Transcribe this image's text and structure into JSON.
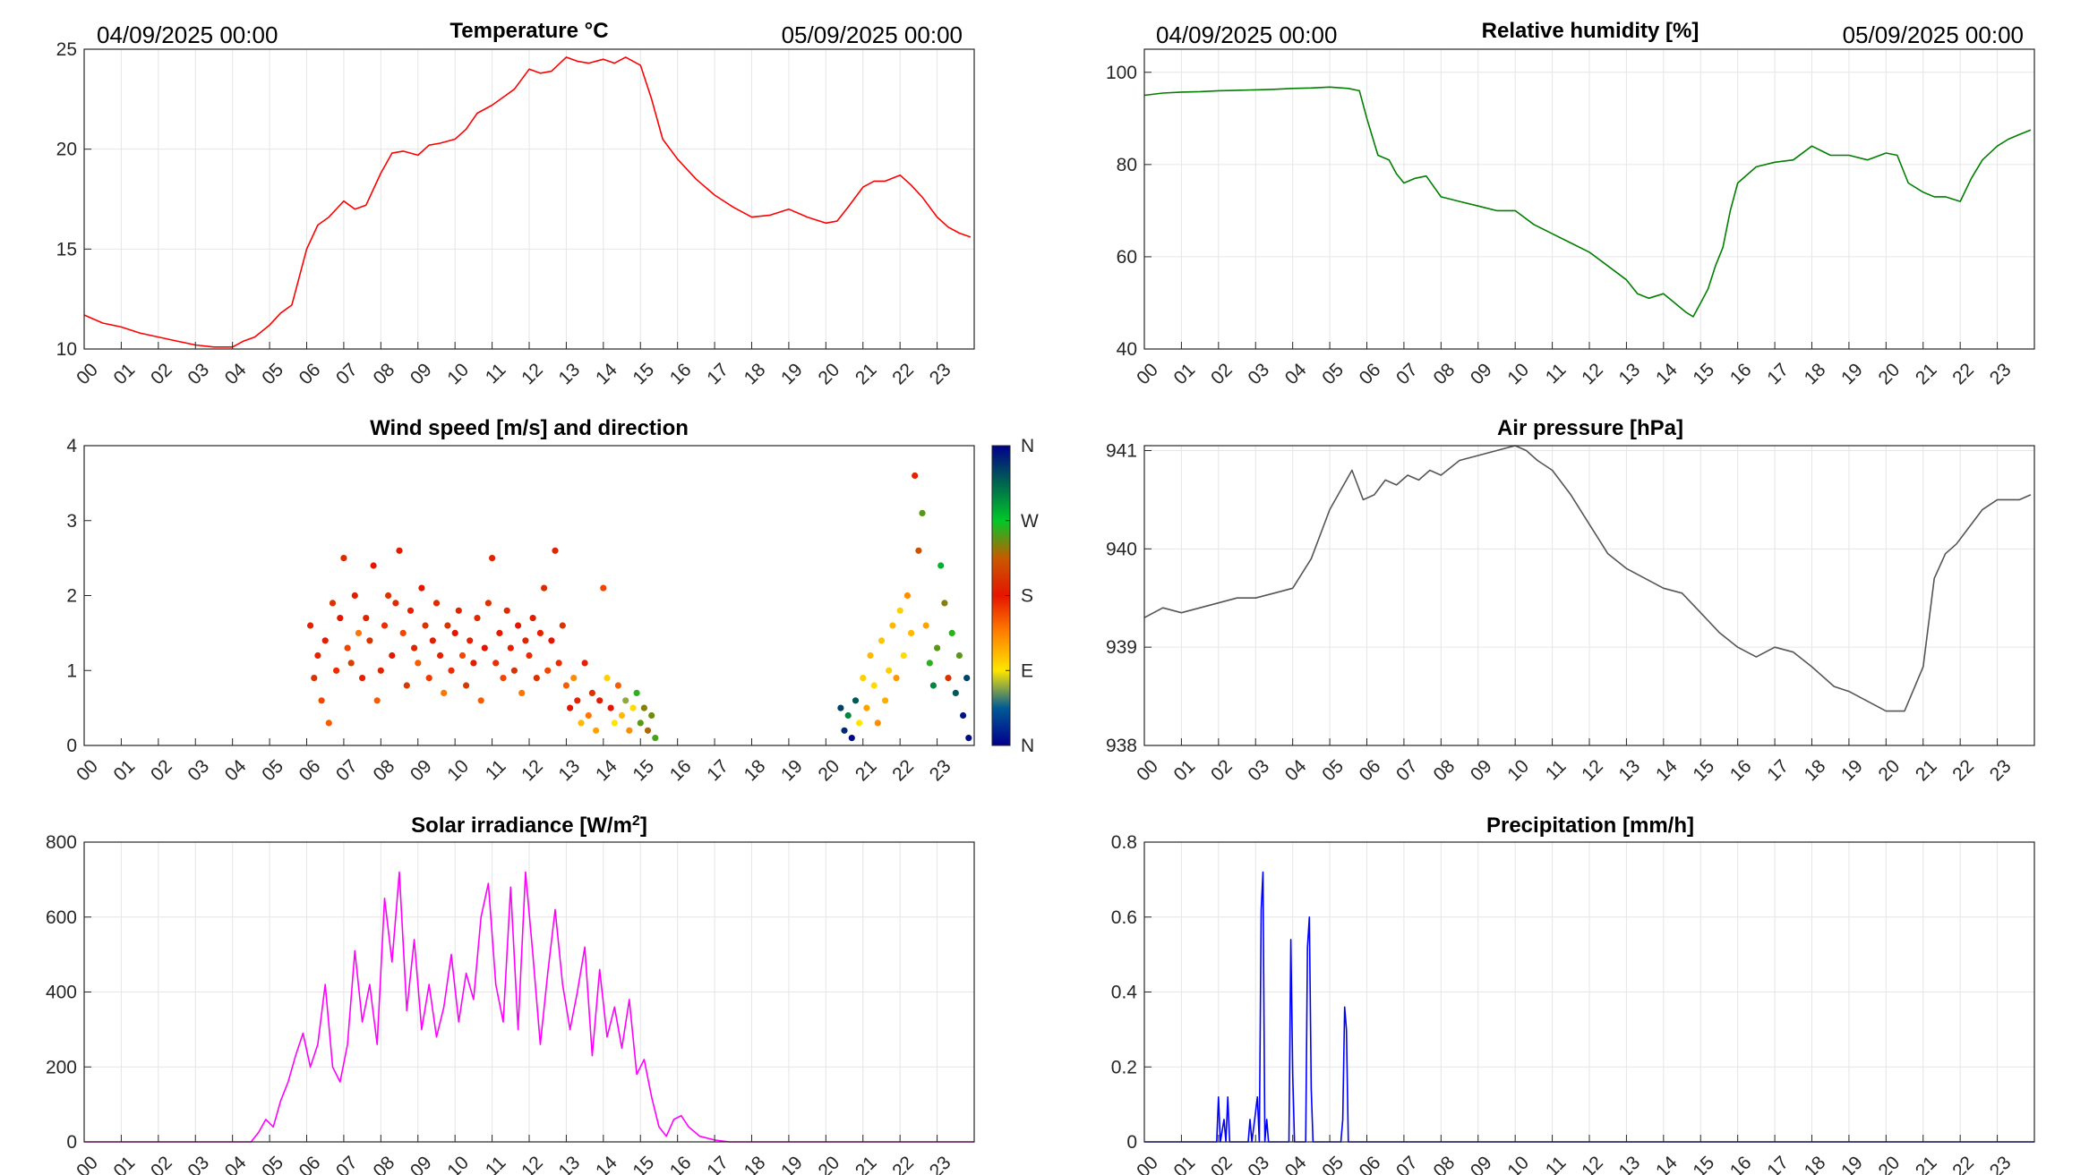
{
  "hour_labels": [
    "00",
    "01",
    "02",
    "03",
    "04",
    "05",
    "06",
    "07",
    "08",
    "09",
    "10",
    "11",
    "12",
    "13",
    "14",
    "15",
    "16",
    "17",
    "18",
    "19",
    "20",
    "21",
    "22",
    "23"
  ],
  "date_start": "04/09/2025 00:00",
  "date_end": "05/09/2025 00:00",
  "chart_data": [
    {
      "id": "temperature",
      "type": "line",
      "title": "Temperature °C",
      "color": "#ff0000",
      "xlabel": "hour",
      "ylabel": "",
      "xlim": [
        0,
        24
      ],
      "ylim": [
        10,
        25
      ],
      "yticks": [
        10,
        15,
        20,
        25
      ],
      "ytick_labels": [
        "10",
        "15",
        "20",
        "25"
      ],
      "grid": true,
      "x": [
        0,
        0.5,
        1,
        1.5,
        2,
        2.5,
        3,
        3.5,
        4,
        4.3,
        4.6,
        5,
        5.3,
        5.6,
        6,
        6.3,
        6.6,
        7,
        7.3,
        7.6,
        8,
        8.3,
        8.6,
        9,
        9.3,
        9.6,
        10,
        10.3,
        10.6,
        11,
        11.3,
        11.6,
        12,
        12.3,
        12.6,
        13,
        13.3,
        13.6,
        14,
        14.3,
        14.6,
        15,
        15.3,
        15.6,
        16,
        16.5,
        17,
        17.5,
        18,
        18.5,
        19,
        19.5,
        20,
        20.3,
        20.6,
        21,
        21.3,
        21.6,
        22,
        22.3,
        22.6,
        23,
        23.3,
        23.6,
        23.9
      ],
      "y": [
        11.7,
        11.3,
        11.1,
        10.8,
        10.6,
        10.4,
        10.2,
        10.1,
        10.1,
        10.4,
        10.6,
        11.2,
        11.8,
        12.2,
        15.0,
        16.2,
        16.6,
        17.4,
        17.0,
        17.2,
        18.8,
        19.8,
        19.9,
        19.7,
        20.2,
        20.3,
        20.5,
        21.0,
        21.8,
        22.2,
        22.6,
        23.0,
        24.0,
        23.8,
        23.9,
        24.6,
        24.4,
        24.3,
        24.5,
        24.3,
        24.6,
        24.2,
        22.5,
        20.5,
        19.5,
        18.5,
        17.7,
        17.1,
        16.6,
        16.7,
        17.0,
        16.6,
        16.3,
        16.4,
        17.1,
        18.1,
        18.4,
        18.4,
        18.7,
        18.2,
        17.6,
        16.6,
        16.1,
        15.8,
        15.6
      ]
    },
    {
      "id": "humidity",
      "type": "line",
      "title": "Relative humidity [%]",
      "color": "#007f00",
      "xlabel": "hour",
      "ylabel": "",
      "xlim": [
        0,
        24
      ],
      "ylim": [
        40,
        105
      ],
      "yticks": [
        40,
        60,
        80,
        100
      ],
      "ytick_labels": [
        "40",
        "60",
        "80",
        "100"
      ],
      "grid": true,
      "x": [
        0,
        0.5,
        1,
        1.5,
        2,
        2.5,
        3,
        3.5,
        4,
        4.5,
        5,
        5.5,
        5.8,
        6,
        6.3,
        6.6,
        6.8,
        7,
        7.3,
        7.6,
        8,
        8.5,
        9,
        9.5,
        10,
        10.5,
        11,
        11.5,
        12,
        12.5,
        13,
        13.3,
        13.6,
        14,
        14.3,
        14.6,
        14.8,
        15,
        15.2,
        15.4,
        15.6,
        15.8,
        16,
        16.5,
        17,
        17.5,
        18,
        18.5,
        19,
        19.5,
        20,
        20.3,
        20.6,
        21,
        21.3,
        21.6,
        22,
        22.3,
        22.6,
        23,
        23.3,
        23.6,
        23.9
      ],
      "y": [
        95,
        95.5,
        95.7,
        95.8,
        96.0,
        96.1,
        96.2,
        96.3,
        96.5,
        96.6,
        96.8,
        96.5,
        96,
        90,
        82,
        81,
        78,
        76,
        77,
        77.5,
        73,
        72,
        71,
        70,
        70,
        67,
        65,
        63,
        61,
        58,
        55,
        52,
        51,
        52,
        50,
        48,
        47,
        50,
        53,
        58,
        62,
        70,
        76,
        79.5,
        80.5,
        81,
        84,
        82,
        82,
        81,
        82.5,
        82,
        76,
        74,
        73,
        73,
        72,
        77,
        81,
        84,
        85.5,
        86.5,
        87.5
      ]
    },
    {
      "id": "wind",
      "type": "scatter",
      "title": "Wind speed [m/s] and direction",
      "xlabel": "hour",
      "ylabel": "",
      "xlim": [
        0,
        24
      ],
      "ylim": [
        0,
        4
      ],
      "yticks": [
        0,
        1,
        2,
        3,
        4
      ],
      "ytick_labels": [
        "0",
        "1",
        "2",
        "3",
        "4"
      ],
      "grid": false,
      "colorbar": {
        "labels": [
          "N",
          "E",
          "S",
          "W",
          "N"
        ],
        "range": [
          0,
          360
        ]
      },
      "points": [
        [
          6.1,
          1.6,
          190
        ],
        [
          6.2,
          0.9,
          200
        ],
        [
          6.3,
          1.2,
          175
        ],
        [
          6.4,
          0.6,
          160
        ],
        [
          6.5,
          1.4,
          185
        ],
        [
          6.6,
          0.3,
          150
        ],
        [
          6.7,
          1.9,
          200
        ],
        [
          6.8,
          1.0,
          170
        ],
        [
          6.9,
          1.7,
          180
        ],
        [
          7.0,
          2.5,
          195
        ],
        [
          7.1,
          1.3,
          160
        ],
        [
          7.2,
          1.1,
          210
        ],
        [
          7.3,
          2.0,
          185
        ],
        [
          7.4,
          1.5,
          140
        ],
        [
          7.5,
          0.9,
          175
        ],
        [
          7.6,
          1.7,
          190
        ],
        [
          7.7,
          1.4,
          200
        ],
        [
          7.8,
          2.4,
          180
        ],
        [
          7.9,
          0.6,
          150
        ],
        [
          8.0,
          1.0,
          190
        ],
        [
          8.1,
          1.6,
          170
        ],
        [
          8.2,
          2.0,
          200
        ],
        [
          8.3,
          1.2,
          180
        ],
        [
          8.4,
          1.9,
          195
        ],
        [
          8.5,
          2.6,
          185
        ],
        [
          8.6,
          1.5,
          160
        ],
        [
          8.7,
          0.8,
          205
        ],
        [
          8.8,
          1.8,
          175
        ],
        [
          8.9,
          1.3,
          190
        ],
        [
          9.0,
          1.1,
          150
        ],
        [
          9.1,
          2.1,
          180
        ],
        [
          9.2,
          1.6,
          200
        ],
        [
          9.3,
          0.9,
          165
        ],
        [
          9.4,
          1.4,
          185
        ],
        [
          9.5,
          1.9,
          195
        ],
        [
          9.6,
          1.2,
          175
        ],
        [
          9.7,
          0.7,
          140
        ],
        [
          9.8,
          1.6,
          200
        ],
        [
          9.9,
          1.0,
          170
        ],
        [
          10.0,
          1.5,
          180
        ],
        [
          10.1,
          1.8,
          190
        ],
        [
          10.2,
          1.2,
          160
        ],
        [
          10.3,
          0.8,
          205
        ],
        [
          10.4,
          1.4,
          175
        ],
        [
          10.5,
          1.1,
          185
        ],
        [
          10.6,
          1.7,
          195
        ],
        [
          10.7,
          0.6,
          150
        ],
        [
          10.8,
          1.3,
          180
        ],
        [
          10.9,
          1.9,
          200
        ],
        [
          11.0,
          2.5,
          190
        ],
        [
          11.1,
          1.1,
          170
        ],
        [
          11.2,
          1.5,
          185
        ],
        [
          11.3,
          0.9,
          160
        ],
        [
          11.4,
          1.8,
          195
        ],
        [
          11.5,
          1.3,
          175
        ],
        [
          11.6,
          1.0,
          200
        ],
        [
          11.7,
          1.6,
          180
        ],
        [
          11.8,
          0.7,
          140
        ],
        [
          11.9,
          1.4,
          190
        ],
        [
          12.0,
          1.2,
          170
        ],
        [
          12.1,
          1.7,
          185
        ],
        [
          12.2,
          0.9,
          200
        ],
        [
          12.3,
          1.5,
          175
        ],
        [
          12.4,
          2.1,
          195
        ],
        [
          12.5,
          1.0,
          160
        ],
        [
          12.6,
          1.4,
          180
        ],
        [
          12.7,
          2.6,
          190
        ],
        [
          12.8,
          1.1,
          170
        ],
        [
          12.9,
          1.6,
          200
        ],
        [
          13.0,
          0.8,
          150
        ],
        [
          13.1,
          0.5,
          180
        ],
        [
          13.2,
          0.9,
          130
        ],
        [
          13.3,
          0.6,
          190
        ],
        [
          13.4,
          0.3,
          110
        ],
        [
          13.5,
          1.1,
          175
        ],
        [
          13.6,
          0.4,
          140
        ],
        [
          13.7,
          0.7,
          200
        ],
        [
          13.8,
          0.2,
          120
        ],
        [
          13.9,
          0.6,
          185
        ],
        [
          14.0,
          2.1,
          160
        ],
        [
          14.1,
          0.9,
          100
        ],
        [
          14.2,
          0.5,
          180
        ],
        [
          14.3,
          0.3,
          90
        ],
        [
          14.4,
          0.8,
          150
        ],
        [
          14.5,
          0.4,
          110
        ],
        [
          14.6,
          0.6,
          70
        ],
        [
          14.7,
          0.2,
          130
        ],
        [
          14.8,
          0.5,
          95
        ],
        [
          14.9,
          0.7,
          260
        ],
        [
          15.0,
          0.3,
          250
        ],
        [
          15.1,
          0.5,
          240
        ],
        [
          15.2,
          0.2,
          230
        ],
        [
          15.3,
          0.4,
          245
        ],
        [
          15.4,
          0.1,
          255
        ],
        [
          20.4,
          0.5,
          330
        ],
        [
          20.5,
          0.2,
          340
        ],
        [
          20.6,
          0.4,
          300
        ],
        [
          20.7,
          0.1,
          355
        ],
        [
          20.8,
          0.6,
          320
        ],
        [
          20.9,
          0.3,
          90
        ],
        [
          21.0,
          0.9,
          100
        ],
        [
          21.1,
          0.5,
          120
        ],
        [
          21.2,
          1.2,
          110
        ],
        [
          21.3,
          0.8,
          95
        ],
        [
          21.4,
          0.3,
          130
        ],
        [
          21.5,
          1.4,
          105
        ],
        [
          21.6,
          0.6,
          115
        ],
        [
          21.7,
          1.0,
          100
        ],
        [
          21.8,
          1.6,
          110
        ],
        [
          21.9,
          0.9,
          125
        ],
        [
          22.0,
          1.8,
          100
        ],
        [
          22.1,
          1.2,
          95
        ],
        [
          22.2,
          2.0,
          130
        ],
        [
          22.3,
          1.5,
          110
        ],
        [
          22.4,
          3.6,
          190
        ],
        [
          22.5,
          2.6,
          220
        ],
        [
          22.6,
          3.1,
          250
        ],
        [
          22.7,
          1.6,
          120
        ],
        [
          22.8,
          1.1,
          260
        ],
        [
          22.9,
          0.8,
          300
        ],
        [
          23.0,
          1.3,
          250
        ],
        [
          23.1,
          2.4,
          280
        ],
        [
          23.2,
          1.9,
          240
        ],
        [
          23.3,
          0.9,
          200
        ],
        [
          23.4,
          1.5,
          260
        ],
        [
          23.5,
          0.7,
          320
        ],
        [
          23.6,
          1.2,
          250
        ],
        [
          23.7,
          0.4,
          350
        ],
        [
          23.8,
          0.9,
          330
        ],
        [
          23.85,
          0.1,
          355
        ]
      ]
    },
    {
      "id": "pressure",
      "type": "line",
      "title": "Air pressure [hPa]",
      "color": "#555555",
      "xlabel": "hour",
      "ylabel": "",
      "xlim": [
        0,
        24
      ],
      "ylim": [
        938,
        941.05
      ],
      "yticks": [
        938,
        939,
        940,
        941
      ],
      "ytick_labels": [
        "938",
        "939",
        "940",
        "941"
      ],
      "grid": true,
      "x": [
        0,
        0.5,
        1,
        1.5,
        2,
        2.5,
        3,
        3.5,
        4,
        4.5,
        5,
        5.3,
        5.6,
        5.9,
        6.2,
        6.5,
        6.8,
        7.1,
        7.4,
        7.7,
        8,
        8.5,
        9,
        9.5,
        10,
        10.3,
        10.6,
        11,
        11.5,
        12,
        12.5,
        13,
        13.5,
        14,
        14.5,
        15,
        15.5,
        16,
        16.5,
        17,
        17.5,
        18,
        18.3,
        18.6,
        19,
        19.5,
        20,
        20.5,
        21,
        21.3,
        21.6,
        21.9,
        22.2,
        22.4,
        22.6,
        22.8,
        23,
        23.3,
        23.6,
        23.9
      ],
      "y": [
        939.3,
        939.4,
        939.35,
        939.4,
        939.45,
        939.5,
        939.5,
        939.55,
        939.6,
        939.9,
        940.4,
        940.6,
        940.8,
        940.5,
        940.55,
        940.7,
        940.65,
        940.75,
        940.7,
        940.8,
        940.75,
        940.9,
        940.95,
        941.0,
        941.05,
        941.0,
        940.9,
        940.8,
        940.55,
        940.25,
        939.95,
        939.8,
        939.7,
        939.6,
        939.55,
        939.35,
        939.15,
        939.0,
        938.9,
        939.0,
        938.95,
        938.8,
        938.7,
        938.6,
        938.55,
        938.45,
        938.35,
        938.35,
        938.8,
        939.7,
        939.95,
        940.05,
        940.2,
        940.3,
        940.4,
        940.45,
        940.5,
        940.5,
        940.5,
        940.55
      ]
    },
    {
      "id": "solar",
      "type": "line",
      "title": "Solar irradiance [W/m2]",
      "color": "#ff00ff",
      "xlabel": "hour",
      "ylabel": "",
      "xlim": [
        0,
        24
      ],
      "ylim": [
        0,
        800
      ],
      "yticks": [
        0,
        200,
        400,
        600,
        800
      ],
      "ytick_labels": [
        "0",
        "200",
        "400",
        "600",
        "800"
      ],
      "grid": true,
      "x": [
        0,
        4.5,
        4.7,
        4.9,
        5.1,
        5.3,
        5.5,
        5.7,
        5.9,
        6.1,
        6.3,
        6.5,
        6.7,
        6.9,
        7.1,
        7.3,
        7.5,
        7.7,
        7.9,
        8.1,
        8.3,
        8.5,
        8.7,
        8.9,
        9.1,
        9.3,
        9.5,
        9.7,
        9.9,
        10.1,
        10.3,
        10.5,
        10.7,
        10.9,
        11.1,
        11.3,
        11.5,
        11.7,
        11.9,
        12.1,
        12.3,
        12.5,
        12.7,
        12.9,
        13.1,
        13.3,
        13.5,
        13.7,
        13.9,
        14.1,
        14.3,
        14.5,
        14.7,
        14.9,
        15.1,
        15.3,
        15.5,
        15.7,
        15.9,
        16.1,
        16.3,
        16.6,
        17,
        17.4,
        24
      ],
      "y": [
        0,
        0,
        25,
        60,
        40,
        110,
        160,
        230,
        290,
        200,
        260,
        420,
        200,
        160,
        260,
        510,
        320,
        420,
        260,
        650,
        480,
        720,
        350,
        540,
        300,
        420,
        280,
        360,
        500,
        320,
        450,
        380,
        600,
        690,
        420,
        320,
        680,
        300,
        720,
        500,
        260,
        450,
        620,
        420,
        300,
        400,
        520,
        230,
        460,
        280,
        360,
        250,
        380,
        180,
        220,
        120,
        40,
        15,
        60,
        70,
        40,
        15,
        5,
        0,
        0
      ]
    },
    {
      "id": "precipitation",
      "type": "line",
      "title": "Precipitation [mm/h]",
      "color": "#0000ff",
      "xlabel": "hour",
      "ylabel": "",
      "xlim": [
        0,
        24
      ],
      "ylim": [
        0,
        0.8
      ],
      "yticks": [
        0,
        0.2,
        0.4,
        0.6,
        0.8
      ],
      "ytick_labels": [
        "0",
        "0.2",
        "0.4",
        "0.6",
        "0.8"
      ],
      "grid": true,
      "x": [
        0,
        1.95,
        2.0,
        2.05,
        2.15,
        2.2,
        2.25,
        2.3,
        2.35,
        2.4,
        2.8,
        2.85,
        2.9,
        3.05,
        3.1,
        3.15,
        3.2,
        3.25,
        3.3,
        3.35,
        3.4,
        3.45,
        3.5,
        3.55,
        3.9,
        3.95,
        4.0,
        4.05,
        4.1,
        4.35,
        4.4,
        4.45,
        4.5,
        4.55,
        5.3,
        5.35,
        5.4,
        5.45,
        5.5,
        24
      ],
      "y": [
        0,
        0,
        0.12,
        0,
        0.06,
        0,
        0.12,
        0,
        0,
        0,
        0,
        0.06,
        0,
        0.12,
        0,
        0.62,
        0.72,
        0,
        0.06,
        0,
        0,
        0,
        0,
        0,
        0,
        0.54,
        0.18,
        0,
        0,
        0,
        0.52,
        0.6,
        0.14,
        0,
        0,
        0.06,
        0.36,
        0.3,
        0,
        0
      ]
    }
  ]
}
